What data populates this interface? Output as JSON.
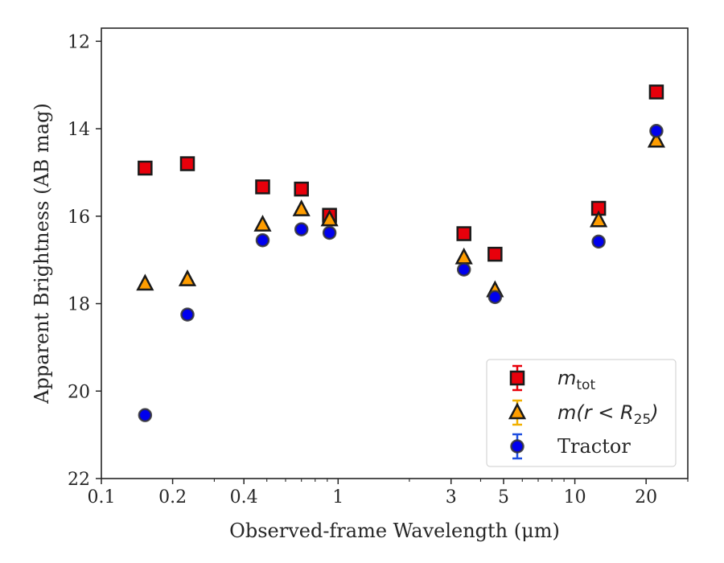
{
  "chart_data": {
    "type": "scatter",
    "title": "",
    "xlabel": "Observed-frame Wavelength (μm)",
    "ylabel": "Apparent Brightness (AB mag)",
    "x_scale": "log",
    "xlim": [
      0.1,
      30
    ],
    "ylim": [
      22,
      11.7
    ],
    "y_inverted": true,
    "grid": false,
    "legend_position": "lower-right",
    "x_ticks": [
      {
        "value": 0.1,
        "label": "0.1"
      },
      {
        "value": 0.2,
        "label": "0.2"
      },
      {
        "value": 0.4,
        "label": "0.4"
      },
      {
        "value": 1,
        "label": "1"
      },
      {
        "value": 3,
        "label": "3"
      },
      {
        "value": 5,
        "label": "5"
      },
      {
        "value": 10,
        "label": "10"
      },
      {
        "value": 20,
        "label": "20"
      }
    ],
    "y_ticks": [
      {
        "value": 12,
        "label": "12"
      },
      {
        "value": 14,
        "label": "14"
      },
      {
        "value": 16,
        "label": "16"
      },
      {
        "value": 18,
        "label": "18"
      },
      {
        "value": 20,
        "label": "20"
      },
      {
        "value": 22,
        "label": "22"
      }
    ],
    "series": [
      {
        "name": "m_tot",
        "legend_main": "m",
        "legend_sub": "tot",
        "marker": "square",
        "color": "#e8000b",
        "errorbar_color": "#e8000b",
        "x": [
          0.153,
          0.231,
          0.48,
          0.7,
          0.92,
          3.4,
          4.6,
          12.6,
          22.1
        ],
        "y": [
          14.9,
          14.8,
          15.33,
          15.38,
          15.98,
          16.4,
          16.87,
          15.82,
          13.16
        ]
      },
      {
        "name": "m(r < R_25)",
        "legend_prefix": "m(r < R",
        "legend_sub": "25",
        "legend_suffix": ")",
        "marker": "triangle",
        "color": "#ff9d00",
        "errorbar_color": "#f1b000",
        "x": [
          0.153,
          0.231,
          0.48,
          0.7,
          0.92,
          3.4,
          4.6,
          12.6,
          22.1
        ],
        "y": [
          17.55,
          17.45,
          16.2,
          15.85,
          16.08,
          16.95,
          17.7,
          16.1,
          14.28
        ]
      },
      {
        "name": "Tractor",
        "marker": "circle",
        "color": "#0000ee",
        "errorbar_color": "#1f4fe0",
        "x": [
          0.153,
          0.231,
          0.48,
          0.7,
          0.92,
          3.4,
          4.6,
          12.6,
          22.1
        ],
        "y": [
          20.55,
          18.25,
          16.55,
          16.3,
          16.38,
          17.22,
          17.85,
          16.58,
          14.05
        ]
      }
    ]
  }
}
